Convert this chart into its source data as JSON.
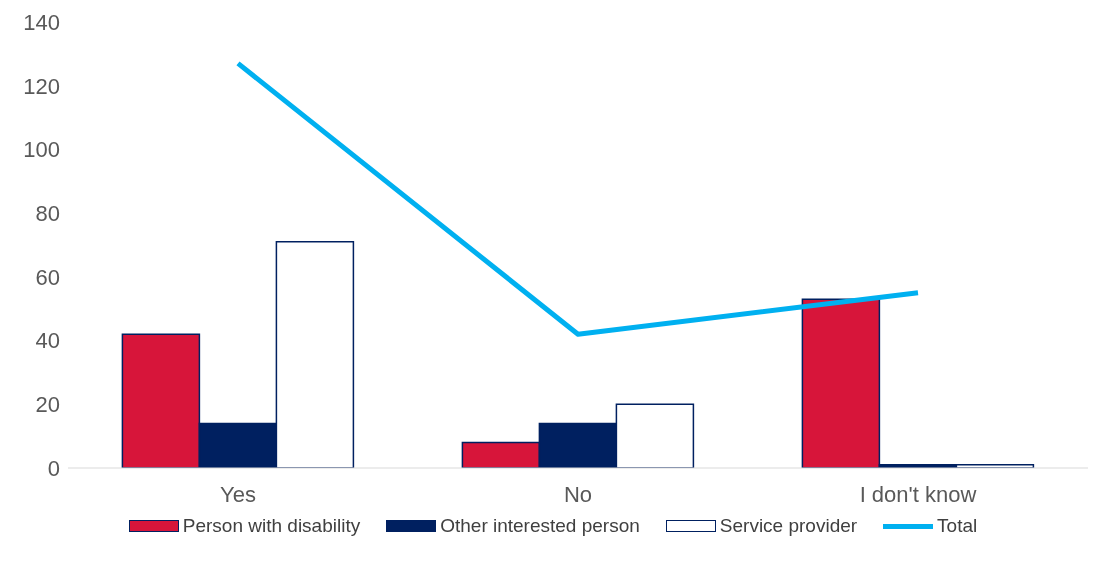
{
  "chart_data": {
    "type": "bar",
    "categories": [
      "Yes",
      "No",
      "I don't know"
    ],
    "series": [
      {
        "name": "Person with disability",
        "color": "#d7153a",
        "values": [
          42,
          8,
          53
        ]
      },
      {
        "name": "Other interested person",
        "color": "#002060",
        "values": [
          14,
          14,
          1
        ]
      },
      {
        "name": "Service provider",
        "color": "#ffffff",
        "values": [
          71,
          20,
          1
        ]
      },
      {
        "name": "Total",
        "type": "line",
        "color": "#00b0f0",
        "values": [
          127,
          42,
          55
        ]
      }
    ],
    "ylim": [
      0,
      140
    ],
    "yticks": [
      0,
      20,
      40,
      60,
      80,
      100,
      120,
      140
    ],
    "grid": false,
    "legend": "bottom",
    "marker": "none"
  }
}
